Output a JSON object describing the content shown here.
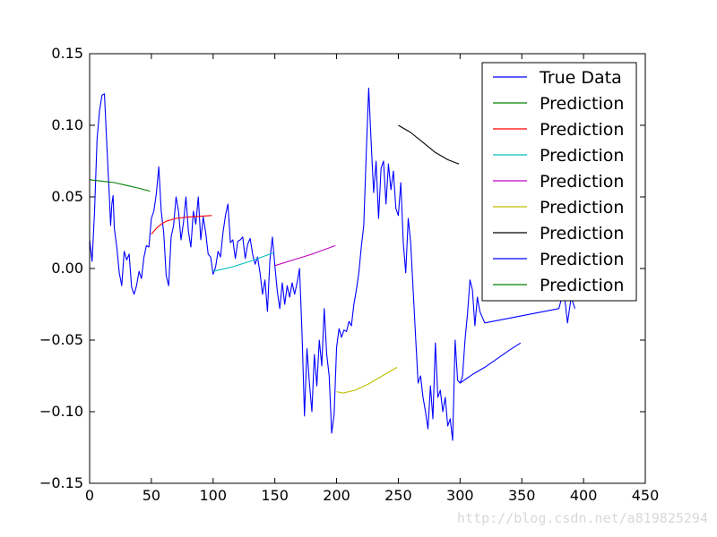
{
  "chart_data": {
    "type": "line",
    "xlim": [
      0,
      450
    ],
    "ylim": [
      -0.15,
      0.15
    ],
    "x_ticks": [
      0,
      50,
      100,
      150,
      200,
      250,
      300,
      350,
      400,
      450
    ],
    "y_ticks": [
      -0.15,
      -0.1,
      -0.05,
      0.0,
      0.05,
      0.1,
      0.15
    ],
    "x_tick_labels": [
      "0",
      "50",
      "100",
      "150",
      "200",
      "250",
      "300",
      "350",
      "400",
      "450"
    ],
    "y_tick_labels": [
      "−0.15",
      "−0.10",
      "−0.05",
      "0.00",
      "0.05",
      "0.10",
      "0.15"
    ],
    "grid": false,
    "legend_placement": "top-right",
    "series": [
      {
        "name": "True Data",
        "color": "#0000ff",
        "points": [
          [
            0,
            0.02
          ],
          [
            2,
            0.005
          ],
          [
            4,
            0.04
          ],
          [
            6,
            0.09
          ],
          [
            8,
            0.11
          ],
          [
            10,
            0.121
          ],
          [
            12,
            0.122
          ],
          [
            14,
            0.085
          ],
          [
            16,
            0.05
          ],
          [
            17,
            0.03
          ],
          [
            18,
            0.045
          ],
          [
            19,
            0.051
          ],
          [
            20,
            0.028
          ],
          [
            22,
            0.015
          ],
          [
            24,
            -0.003
          ],
          [
            26,
            -0.012
          ],
          [
            28,
            0.012
          ],
          [
            30,
            0.006
          ],
          [
            32,
            0.01
          ],
          [
            34,
            -0.013
          ],
          [
            36,
            -0.018
          ],
          [
            38,
            -0.012
          ],
          [
            40,
            -0.002
          ],
          [
            42,
            -0.007
          ],
          [
            44,
            0.008
          ],
          [
            46,
            0.016
          ],
          [
            48,
            0.015
          ],
          [
            50,
            0.035
          ],
          [
            52,
            0.04
          ],
          [
            54,
            0.052
          ],
          [
            56,
            0.071
          ],
          [
            58,
            0.04
          ],
          [
            60,
            0.025
          ],
          [
            62,
            -0.005
          ],
          [
            64,
            -0.012
          ],
          [
            66,
            0.022
          ],
          [
            68,
            0.03
          ],
          [
            70,
            0.05
          ],
          [
            72,
            0.04
          ],
          [
            74,
            0.02
          ],
          [
            76,
            0.032
          ],
          [
            78,
            0.05
          ],
          [
            80,
            0.026
          ],
          [
            82,
            0.015
          ],
          [
            84,
            0.04
          ],
          [
            86,
            0.031
          ],
          [
            88,
            0.05
          ],
          [
            90,
            0.02
          ],
          [
            92,
            0.036
          ],
          [
            94,
            0.025
          ],
          [
            96,
            0.01
          ],
          [
            98,
            0.008
          ],
          [
            100,
            -0.004
          ],
          [
            102,
            0.001
          ],
          [
            104,
            0.012
          ],
          [
            106,
            0.008
          ],
          [
            108,
            0.025
          ],
          [
            110,
            0.037
          ],
          [
            112,
            0.045
          ],
          [
            114,
            0.018
          ],
          [
            116,
            0.02
          ],
          [
            118,
            0.007
          ],
          [
            120,
            0.019
          ],
          [
            122,
            0.02
          ],
          [
            124,
            0.022
          ],
          [
            126,
            0.007
          ],
          [
            128,
            0.017
          ],
          [
            130,
            0.021
          ],
          [
            132,
            0.01
          ],
          [
            134,
            0.003
          ],
          [
            136,
            0.008
          ],
          [
            138,
            -0.003
          ],
          [
            140,
            -0.018
          ],
          [
            142,
            -0.008
          ],
          [
            144,
            -0.03
          ],
          [
            146,
            0.006
          ],
          [
            148,
            0.022
          ],
          [
            150,
            0.002
          ],
          [
            152,
            -0.016
          ],
          [
            154,
            -0.028
          ],
          [
            156,
            -0.01
          ],
          [
            158,
            -0.025
          ],
          [
            160,
            -0.012
          ],
          [
            162,
            -0.02
          ],
          [
            164,
            -0.01
          ],
          [
            166,
            -0.018
          ],
          [
            168,
            -0.01
          ],
          [
            170,
            0.0
          ],
          [
            172,
            -0.045
          ],
          [
            174,
            -0.103
          ],
          [
            176,
            -0.056
          ],
          [
            178,
            -0.08
          ],
          [
            180,
            -0.1
          ],
          [
            182,
            -0.06
          ],
          [
            184,
            -0.082
          ],
          [
            186,
            -0.05
          ],
          [
            188,
            -0.068
          ],
          [
            190,
            -0.028
          ],
          [
            192,
            -0.06
          ],
          [
            194,
            -0.075
          ],
          [
            196,
            -0.115
          ],
          [
            198,
            -0.102
          ],
          [
            200,
            -0.055
          ],
          [
            202,
            -0.042
          ],
          [
            204,
            -0.048
          ],
          [
            206,
            -0.043
          ],
          [
            208,
            -0.044
          ],
          [
            210,
            -0.037
          ],
          [
            212,
            -0.04
          ],
          [
            214,
            -0.025
          ],
          [
            216,
            -0.015
          ],
          [
            218,
            -0.003
          ],
          [
            220,
            0.015
          ],
          [
            222,
            0.03
          ],
          [
            224,
            0.08
          ],
          [
            226,
            0.126
          ],
          [
            228,
            0.088
          ],
          [
            230,
            0.053
          ],
          [
            232,
            0.075
          ],
          [
            234,
            0.035
          ],
          [
            236,
            0.07
          ],
          [
            238,
            0.075
          ],
          [
            240,
            0.045
          ],
          [
            242,
            0.073
          ],
          [
            244,
            0.055
          ],
          [
            246,
            0.068
          ],
          [
            248,
            0.042
          ],
          [
            250,
            0.037
          ],
          [
            252,
            0.06
          ],
          [
            254,
            0.018
          ],
          [
            256,
            -0.003
          ],
          [
            258,
            0.035
          ],
          [
            260,
            0.018
          ],
          [
            262,
            -0.015
          ],
          [
            264,
            -0.048
          ],
          [
            266,
            -0.08
          ],
          [
            268,
            -0.075
          ],
          [
            270,
            -0.09
          ],
          [
            272,
            -0.1
          ],
          [
            274,
            -0.112
          ],
          [
            276,
            -0.082
          ],
          [
            278,
            -0.105
          ],
          [
            280,
            -0.052
          ],
          [
            282,
            -0.09
          ],
          [
            284,
            -0.085
          ],
          [
            286,
            -0.1
          ],
          [
            288,
            -0.09
          ],
          [
            290,
            -0.11
          ],
          [
            292,
            -0.105
          ],
          [
            294,
            -0.12
          ],
          [
            296,
            -0.05
          ],
          [
            298,
            -0.078
          ],
          [
            300,
            -0.08
          ],
          [
            302,
            -0.075
          ],
          [
            304,
            -0.05
          ],
          [
            306,
            -0.032
          ],
          [
            308,
            -0.008
          ],
          [
            310,
            -0.015
          ],
          [
            312,
            -0.04
          ],
          [
            314,
            -0.02
          ],
          [
            316,
            -0.03
          ],
          [
            320,
            -0.038
          ],
          [
            380,
            -0.028
          ],
          [
            384,
            -0.015
          ],
          [
            387,
            -0.038
          ],
          [
            390,
            -0.02
          ],
          [
            393,
            -0.028
          ]
        ]
      },
      {
        "name": "Prediction",
        "color": "#008000",
        "points": [
          [
            0,
            0.062
          ],
          [
            10,
            0.061
          ],
          [
            20,
            0.06
          ],
          [
            30,
            0.058
          ],
          [
            40,
            0.056
          ],
          [
            49,
            0.054
          ]
        ]
      },
      {
        "name": "Prediction",
        "color": "#ff0000",
        "points": [
          [
            50,
            0.024
          ],
          [
            54,
            0.028
          ],
          [
            58,
            0.031
          ],
          [
            62,
            0.033
          ],
          [
            70,
            0.035
          ],
          [
            80,
            0.036
          ],
          [
            90,
            0.0365
          ],
          [
            99,
            0.037
          ]
        ]
      },
      {
        "name": "Prediction",
        "color": "#00bfbf",
        "points": [
          [
            100,
            -0.002
          ],
          [
            115,
            0.001
          ],
          [
            130,
            0.005
          ],
          [
            149,
            0.011
          ]
        ]
      },
      {
        "name": "Prediction",
        "color": "#bf00bf",
        "points": [
          [
            150,
            0.002
          ],
          [
            165,
            0.006
          ],
          [
            180,
            0.01
          ],
          [
            199,
            0.016
          ]
        ]
      },
      {
        "name": "Prediction",
        "color": "#bfbf00",
        "points": [
          [
            200,
            -0.086
          ],
          [
            205,
            -0.087
          ],
          [
            215,
            -0.085
          ],
          [
            225,
            -0.081
          ],
          [
            235,
            -0.076
          ],
          [
            249,
            -0.069
          ]
        ]
      },
      {
        "name": "Prediction",
        "color": "#000000",
        "points": [
          [
            250,
            0.1
          ],
          [
            260,
            0.095
          ],
          [
            270,
            0.088
          ],
          [
            280,
            0.081
          ],
          [
            290,
            0.076
          ],
          [
            299,
            0.073
          ]
        ]
      },
      {
        "name": "Prediction",
        "color": "#0000ff",
        "points": [
          [
            300,
            -0.08
          ],
          [
            310,
            -0.074
          ],
          [
            320,
            -0.069
          ],
          [
            330,
            -0.063
          ],
          [
            340,
            -0.057
          ],
          [
            349,
            -0.052
          ]
        ]
      },
      {
        "name": "Prediction",
        "color": "#008000",
        "points": []
      }
    ]
  },
  "watermark": "http://blog.csdn.net/a819825294"
}
